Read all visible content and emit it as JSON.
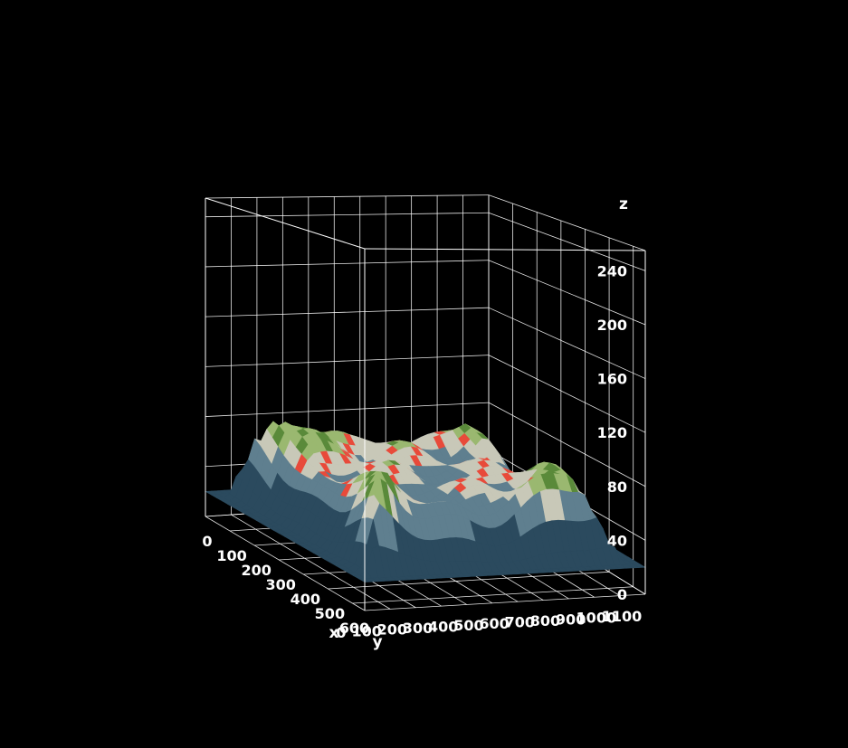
{
  "chart_data": {
    "type": "surface3d",
    "title": "",
    "axes": {
      "x": {
        "title": "x",
        "range": [
          0,
          1100
        ],
        "ticks": [
          0,
          100,
          200,
          300,
          400,
          500,
          600,
          700,
          800,
          900,
          1000,
          1100
        ]
      },
      "y": {
        "title": "y",
        "range": [
          0,
          650
        ],
        "ticks": [
          0,
          100,
          200,
          300,
          400,
          500,
          600
        ]
      },
      "z": {
        "title": "z",
        "range": [
          0,
          255
        ],
        "ticks": [
          0,
          40,
          80,
          120,
          160,
          200,
          240
        ]
      }
    },
    "grid": true,
    "background": "#000000",
    "surface": {
      "description_colors": [
        "#2b4a5e",
        "#5f7f8f",
        "#c8c8b8",
        "#e84a3a",
        "#5a8a3a",
        "#9ab870"
      ],
      "baseline_z": 20,
      "plateau_z": 60,
      "rim_peaks": [
        {
          "x": 0,
          "y": 600,
          "z": 130
        },
        {
          "x": 1100,
          "y": 0,
          "z": 130
        },
        {
          "x": 0,
          "y": 0,
          "z": 120
        },
        {
          "x": 1100,
          "y": 600,
          "z": 100
        }
      ]
    }
  }
}
